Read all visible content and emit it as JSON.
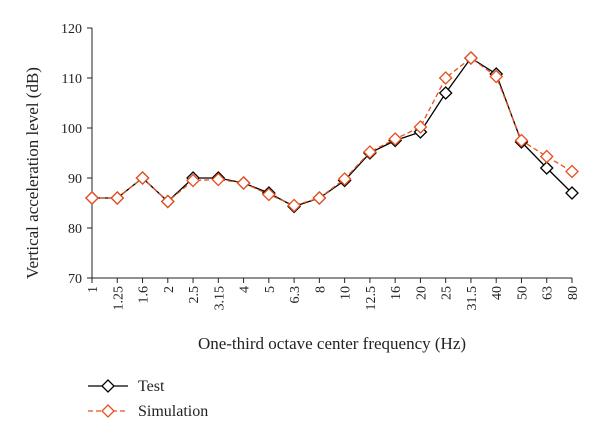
{
  "chart_data": {
    "type": "line",
    "xlabel": "One-third octave center frequency (Hz)",
    "ylabel": "Vertical acceleration level (dB)",
    "ylim": [
      70,
      120
    ],
    "yticks": [
      "70",
      "80",
      "90",
      "100",
      "110",
      "120"
    ],
    "categories": [
      "1",
      "1.25",
      "1.6",
      "2",
      "2.5",
      "3.15",
      "4",
      "5",
      "6.3",
      "8",
      "10",
      "12.5",
      "16",
      "20",
      "25",
      "31.5",
      "40",
      "50",
      "63",
      "80"
    ],
    "grid": false,
    "legend_position": "bottom-left",
    "series": [
      {
        "name": "Test",
        "color": "#000000",
        "line": "solid",
        "marker": "diamond",
        "values": [
          86,
          86,
          90,
          85.3,
          90,
          90,
          89,
          87,
          84.3,
          86,
          89.5,
          95,
          97.5,
          99.2,
          107,
          114,
          110.8,
          97.2,
          92,
          87
        ]
      },
      {
        "name": "Simulation",
        "color": "#e8501e",
        "line": "dashed",
        "marker": "diamond",
        "values": [
          86,
          86,
          90,
          85.3,
          89.5,
          89.7,
          89,
          86.7,
          84.5,
          86,
          89.8,
          95.2,
          97.8,
          100.2,
          110,
          114,
          110.3,
          97.5,
          94.3,
          91.3
        ]
      }
    ]
  }
}
